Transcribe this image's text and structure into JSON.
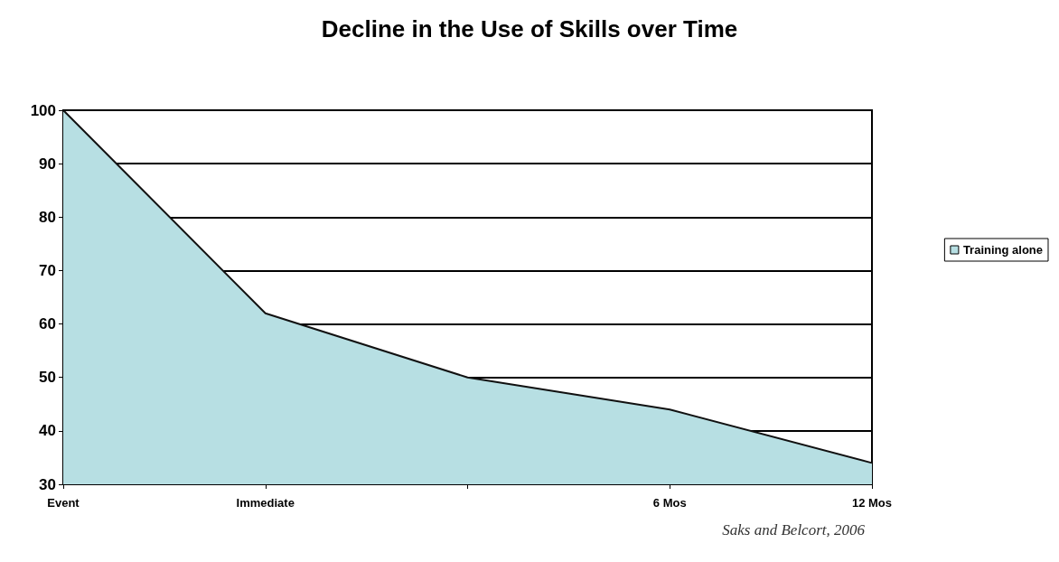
{
  "chart_data": {
    "type": "area",
    "title": "Decline in the Use of Skills over Time",
    "categories": [
      "Event",
      "Immediate",
      null,
      "6 Mos",
      "12 Mos"
    ],
    "series": [
      {
        "name": "Training alone",
        "color": "#b7dfe3",
        "values": [
          100,
          62,
          50,
          44,
          34
        ]
      }
    ],
    "ylim": [
      30,
      100
    ],
    "yticks": [
      30,
      40,
      50,
      60,
      70,
      80,
      90,
      100
    ],
    "grid": "y",
    "legend": "right",
    "annotations": [
      "Saks and Belcort, 2006"
    ]
  }
}
